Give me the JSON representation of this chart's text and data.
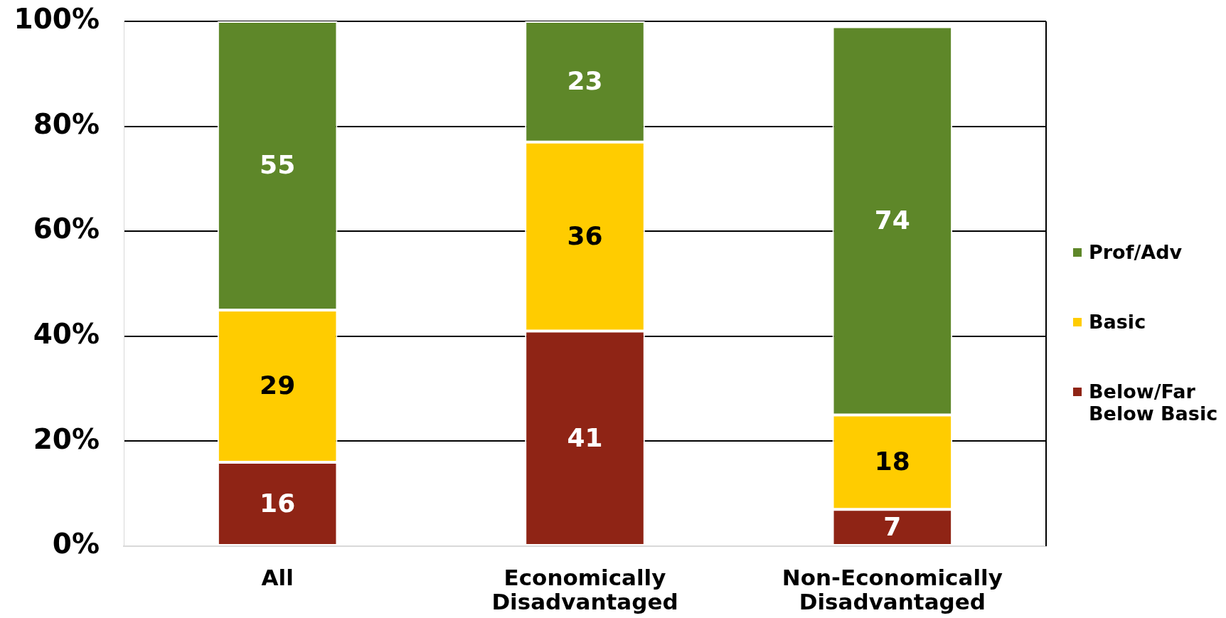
{
  "chart_data": {
    "type": "bar",
    "stacked": true,
    "categories": [
      "All",
      "Economically Disadvantaged",
      "Non-Economically Disadvantaged"
    ],
    "series": [
      {
        "name": "Below/Far Below Basic",
        "color": "#8f2415",
        "values": [
          16,
          41,
          7
        ]
      },
      {
        "name": "Basic",
        "color": "#ffcc00",
        "values": [
          29,
          36,
          18
        ]
      },
      {
        "name": "Prof/Adv",
        "color": "#5e8729",
        "values": [
          55,
          23,
          74
        ]
      }
    ],
    "ylim": [
      0,
      100
    ],
    "yticks": [
      {
        "value": 0,
        "label": "0%"
      },
      {
        "value": 20,
        "label": "20%"
      },
      {
        "value": 40,
        "label": "40%"
      },
      {
        "value": 60,
        "label": "60%"
      },
      {
        "value": 80,
        "label": "80%"
      },
      {
        "value": 100,
        "label": "100%"
      }
    ],
    "grid": "y",
    "legend": "right",
    "data_labels": true
  }
}
